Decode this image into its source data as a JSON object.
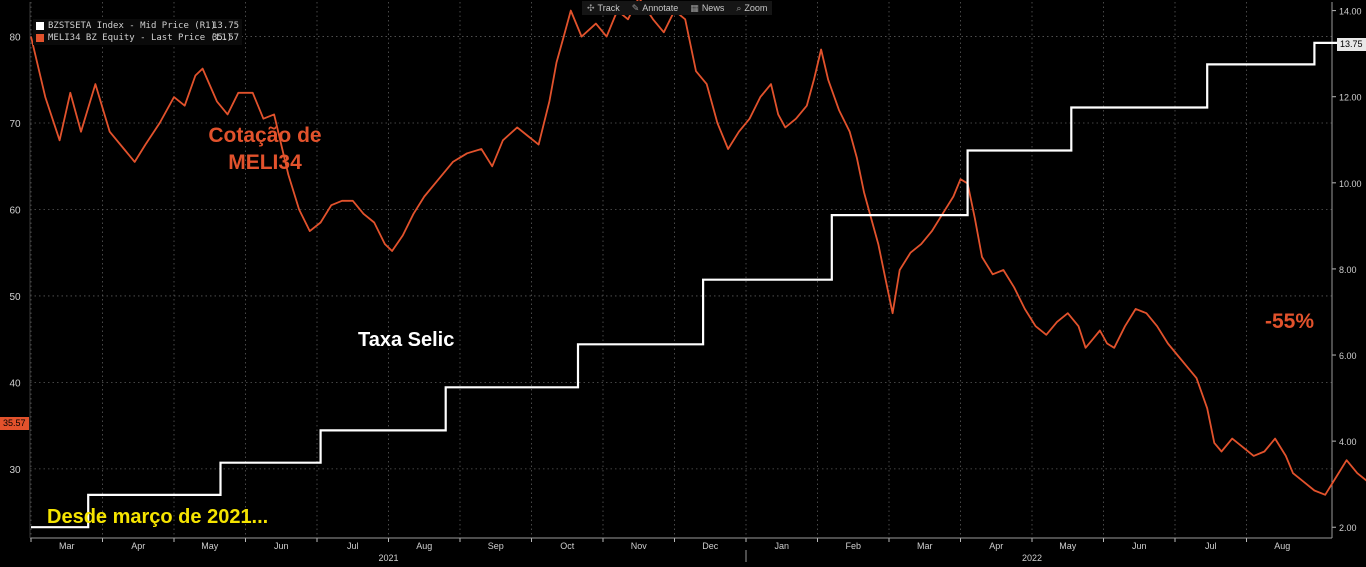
{
  "toolbar": {
    "items": [
      {
        "icon": "crosshair-icon",
        "glyph": "✣",
        "label": "Track"
      },
      {
        "icon": "pencil-icon",
        "glyph": "✎",
        "label": "Annotate"
      },
      {
        "icon": "news-icon",
        "glyph": "▦",
        "label": "News"
      },
      {
        "icon": "zoom-icon",
        "glyph": "⌕",
        "label": "Zoom"
      }
    ]
  },
  "legend": [
    {
      "color": "#ffffff",
      "name": "BZSTSETA Index - Mid Price (R1)",
      "value": "13.75"
    },
    {
      "color": "#e2522c",
      "name": "MELI34 BZ Equity - Last Price (L1)",
      "value": "35.57"
    }
  ],
  "annotations": {
    "cotacao_line1": "Cotação de",
    "cotacao_line2": "MELI34",
    "selic": "Taxa Selic",
    "drop": "-55%",
    "desde": "Desde março de 2021..."
  },
  "badges": {
    "left": "35.57",
    "right": "13.75"
  },
  "colors": {
    "meli": "#e2522c",
    "selic": "#ffffff",
    "desde": "#f5e400",
    "background": "#000000",
    "grid": "#5a5a5a"
  },
  "chart_data": {
    "type": "line",
    "x_months": [
      "Mar",
      "Apr",
      "May",
      "Jun",
      "Jul",
      "Aug",
      "Sep",
      "Oct",
      "Nov",
      "Dec",
      "Jan",
      "Feb",
      "Mar",
      "Apr",
      "May",
      "Jun",
      "Jul",
      "Aug"
    ],
    "x_years": [
      "2021",
      "2022"
    ],
    "y_left": {
      "ticks": [
        30,
        40,
        50,
        60,
        70,
        80
      ],
      "range": [
        22,
        84
      ]
    },
    "y_right": {
      "ticks": [
        "2.00",
        "4.00",
        "6.00",
        "8.00",
        "10.00",
        "12.00",
        "14.00"
      ],
      "range": [
        1.75,
        14.2
      ]
    },
    "grid": true,
    "series": [
      {
        "name": "MELI34 BZ Equity - Last Price (L1)",
        "axis": "left",
        "color": "#e2522c",
        "points": [
          [
            0.0,
            80.0
          ],
          [
            0.2,
            73.0
          ],
          [
            0.4,
            68.0
          ],
          [
            0.55,
            73.5
          ],
          [
            0.7,
            69.0
          ],
          [
            0.9,
            74.5
          ],
          [
            1.1,
            69.0
          ],
          [
            1.3,
            67.0
          ],
          [
            1.45,
            65.5
          ],
          [
            1.6,
            67.5
          ],
          [
            1.8,
            70.0
          ],
          [
            2.0,
            73.0
          ],
          [
            2.15,
            72.0
          ],
          [
            2.3,
            75.5
          ],
          [
            2.4,
            76.3
          ],
          [
            2.6,
            72.5
          ],
          [
            2.75,
            71.0
          ],
          [
            2.9,
            73.5
          ],
          [
            3.1,
            73.5
          ],
          [
            3.25,
            70.5
          ],
          [
            3.4,
            71.0
          ],
          [
            3.6,
            64.0
          ],
          [
            3.75,
            60.0
          ],
          [
            3.9,
            57.5
          ],
          [
            4.05,
            58.5
          ],
          [
            4.2,
            60.5
          ],
          [
            4.35,
            61.0
          ],
          [
            4.5,
            61.0
          ],
          [
            4.65,
            59.5
          ],
          [
            4.8,
            58.5
          ],
          [
            4.95,
            56.0
          ],
          [
            5.05,
            55.2
          ],
          [
            5.2,
            57.0
          ],
          [
            5.35,
            59.5
          ],
          [
            5.5,
            61.5
          ],
          [
            5.7,
            63.5
          ],
          [
            5.9,
            65.5
          ],
          [
            6.1,
            66.5
          ],
          [
            6.3,
            67.0
          ],
          [
            6.45,
            65.0
          ],
          [
            6.6,
            68.0
          ],
          [
            6.8,
            69.5
          ],
          [
            6.95,
            68.5
          ],
          [
            7.1,
            67.5
          ],
          [
            7.25,
            72.5
          ],
          [
            7.35,
            77.0
          ],
          [
            7.45,
            80.0
          ],
          [
            7.55,
            83.0
          ],
          [
            7.7,
            80.0
          ],
          [
            7.9,
            81.5
          ],
          [
            8.05,
            80.0
          ],
          [
            8.2,
            83.0
          ],
          [
            8.35,
            82.0
          ],
          [
            8.5,
            84.5
          ],
          [
            8.7,
            82.0
          ],
          [
            8.85,
            80.5
          ],
          [
            9.0,
            83.0
          ],
          [
            9.15,
            82.0
          ],
          [
            9.3,
            76.0
          ],
          [
            9.45,
            74.5
          ],
          [
            9.6,
            70.0
          ],
          [
            9.75,
            67.0
          ],
          [
            9.9,
            69.0
          ],
          [
            10.05,
            70.5
          ],
          [
            10.2,
            73.0
          ],
          [
            10.35,
            74.5
          ],
          [
            10.45,
            71.0
          ],
          [
            10.55,
            69.5
          ],
          [
            10.7,
            70.5
          ],
          [
            10.85,
            72.0
          ],
          [
            10.95,
            75.0
          ],
          [
            11.05,
            78.5
          ],
          [
            11.15,
            75.0
          ],
          [
            11.3,
            71.5
          ],
          [
            11.45,
            69.0
          ],
          [
            11.55,
            66.0
          ],
          [
            11.65,
            62.0
          ],
          [
            11.75,
            59.0
          ],
          [
            11.85,
            56.0
          ],
          [
            11.95,
            52.0
          ],
          [
            12.05,
            48.0
          ],
          [
            12.15,
            53.0
          ],
          [
            12.3,
            55.0
          ],
          [
            12.45,
            56.0
          ],
          [
            12.6,
            57.5
          ],
          [
            12.75,
            59.5
          ],
          [
            12.9,
            61.5
          ],
          [
            13.0,
            63.5
          ],
          [
            13.1,
            63.0
          ],
          [
            13.2,
            59.0
          ],
          [
            13.3,
            54.5
          ],
          [
            13.45,
            52.5
          ],
          [
            13.6,
            53.0
          ],
          [
            13.75,
            51.0
          ],
          [
            13.9,
            48.5
          ],
          [
            14.05,
            46.5
          ],
          [
            14.2,
            45.5
          ],
          [
            14.35,
            47.0
          ],
          [
            14.5,
            48.0
          ],
          [
            14.65,
            46.5
          ],
          [
            14.75,
            44.0
          ],
          [
            14.85,
            45.0
          ],
          [
            14.95,
            46.0
          ],
          [
            15.05,
            44.5
          ],
          [
            15.15,
            44.0
          ],
          [
            15.3,
            46.5
          ],
          [
            15.45,
            48.5
          ],
          [
            15.6,
            48.0
          ],
          [
            15.75,
            46.5
          ],
          [
            15.9,
            44.5
          ],
          [
            16.05,
            43.0
          ],
          [
            16.15,
            42.0
          ],
          [
            16.3,
            40.5
          ],
          [
            16.45,
            37.0
          ],
          [
            16.55,
            33.0
          ],
          [
            16.65,
            32.0
          ],
          [
            16.8,
            33.5
          ],
          [
            16.95,
            32.5
          ],
          [
            17.1,
            31.5
          ],
          [
            17.25,
            32.0
          ],
          [
            17.4,
            33.5
          ],
          [
            17.55,
            31.5
          ],
          [
            17.65,
            29.5
          ],
          [
            17.8,
            28.5
          ],
          [
            17.95,
            27.5
          ],
          [
            18.1,
            27.0
          ],
          [
            18.25,
            29.0
          ],
          [
            18.4,
            31.0
          ],
          [
            18.55,
            29.5
          ],
          [
            18.7,
            28.5
          ],
          [
            18.85,
            30.0
          ],
          [
            19.0,
            30.0
          ],
          [
            19.15,
            33.0
          ],
          [
            19.3,
            37.5
          ],
          [
            19.45,
            39.5
          ],
          [
            19.55,
            41.0
          ],
          [
            19.7,
            42.0
          ],
          [
            19.85,
            42.5
          ],
          [
            20.0,
            42.0
          ],
          [
            20.15,
            40.5
          ],
          [
            20.3,
            38.0
          ],
          [
            20.45,
            36.5
          ],
          [
            20.55,
            36.0
          ],
          [
            20.7,
            35.57
          ]
        ]
      },
      {
        "name": "BZSTSETA Index - Mid Price (R1)",
        "axis": "right",
        "color": "#ffffff",
        "steps": [
          [
            0.0,
            2.0
          ],
          [
            0.8,
            2.75
          ],
          [
            2.65,
            3.5
          ],
          [
            4.05,
            4.25
          ],
          [
            5.8,
            5.25
          ],
          [
            7.65,
            6.25
          ],
          [
            9.4,
            7.75
          ],
          [
            11.2,
            9.25
          ],
          [
            13.1,
            10.75
          ],
          [
            14.55,
            11.75
          ],
          [
            16.45,
            12.75
          ],
          [
            17.95,
            13.25
          ],
          [
            19.35,
            13.75
          ],
          [
            20.7,
            13.75
          ]
        ]
      }
    ]
  }
}
